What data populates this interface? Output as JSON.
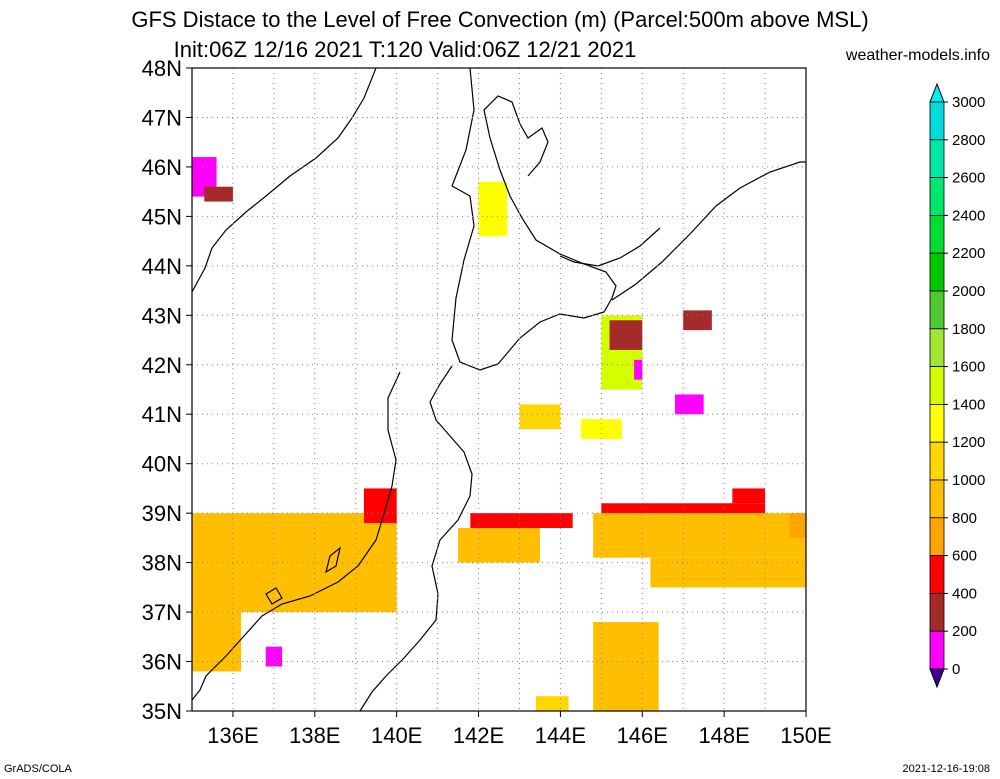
{
  "header": {
    "title_line1": "GFS Distace to the Level of Free Convection (m) (Parcel:500m above MSL)",
    "title_line2": "Init:06Z 12/16 2021 T:120 Valid:06Z 12/21 2021",
    "site": "weather-models.info"
  },
  "footer": {
    "credit": "GrADS/COLA",
    "timestamp": "2021-12-16-19:08"
  },
  "map": {
    "lon_range": [
      135,
      150
    ],
    "lat_range": [
      35,
      48
    ],
    "lat_labels": [
      "35N",
      "36N",
      "37N",
      "38N",
      "39N",
      "40N",
      "41N",
      "42N",
      "43N",
      "44N",
      "45N",
      "46N",
      "47N",
      "48N"
    ],
    "lon_labels": [
      "136E",
      "138E",
      "140E",
      "142E",
      "144E",
      "146E",
      "148E",
      "150E"
    ],
    "grid": "dotted"
  },
  "colorbar": {
    "levels": [
      "0",
      "200",
      "400",
      "600",
      "800",
      "1000",
      "1200",
      "1400",
      "1600",
      "1800",
      "2000",
      "2200",
      "2400",
      "2600",
      "2800",
      "3000"
    ],
    "colors": [
      "#3c0096",
      "#ff00ff",
      "#a52a2a",
      "#ff0000",
      "#ffa500",
      "#ffbf00",
      "#ffd700",
      "#ffff00",
      "#d4ff00",
      "#a0e632",
      "#50c832",
      "#00c800",
      "#00dc32",
      "#00e66e",
      "#00e6aa",
      "#00dcdc",
      "#00f0f0"
    ]
  },
  "chart_data": {
    "type": "heatmap",
    "variable": "Distance to the Level of Free Convection (m)",
    "units": "m",
    "regions": [
      {
        "lon": [
          135.0,
          140.0
        ],
        "lat": [
          37.0,
          39.0
        ],
        "value": 900
      },
      {
        "lon": [
          135.0,
          136.2
        ],
        "lat": [
          35.8,
          37.0
        ],
        "value": 950
      },
      {
        "lon": [
          139.2,
          140.0
        ],
        "lat": [
          38.8,
          39.5
        ],
        "value": 400
      },
      {
        "lon": [
          141.8,
          144.3
        ],
        "lat": [
          38.7,
          39.0
        ],
        "value": 500
      },
      {
        "lon": [
          141.5,
          143.5
        ],
        "lat": [
          38.0,
          38.7
        ],
        "value": 950
      },
      {
        "lon": [
          144.8,
          150.0
        ],
        "lat": [
          38.1,
          39.0
        ],
        "value": 950
      },
      {
        "lon": [
          145.0,
          149.0
        ],
        "lat": [
          39.0,
          39.2
        ],
        "value": 550
      },
      {
        "lon": [
          148.2,
          149.0
        ],
        "lat": [
          39.2,
          39.5
        ],
        "value": 400
      },
      {
        "lon": [
          149.6,
          150.0
        ],
        "lat": [
          38.5,
          39.0
        ],
        "value": 650
      },
      {
        "lon": [
          146.2,
          150.0
        ],
        "lat": [
          37.5,
          38.1
        ],
        "value": 950
      },
      {
        "lon": [
          145.0,
          146.0
        ],
        "lat": [
          41.5,
          43.0
        ],
        "value": 1400
      },
      {
        "lon": [
          145.2,
          146.0
        ],
        "lat": [
          42.3,
          42.9
        ],
        "value": 350
      },
      {
        "lon": [
          145.8,
          146.0
        ],
        "lat": [
          41.7,
          42.1
        ],
        "value": 100
      },
      {
        "lon": [
          146.8,
          147.5
        ],
        "lat": [
          41.0,
          41.4
        ],
        "value": 100
      },
      {
        "lon": [
          147.0,
          147.7
        ],
        "lat": [
          42.7,
          43.1
        ],
        "value": 200
      },
      {
        "lon": [
          144.5,
          145.5
        ],
        "lat": [
          40.5,
          40.9
        ],
        "value": 1200
      },
      {
        "lon": [
          143.0,
          144.0
        ],
        "lat": [
          40.7,
          41.2
        ],
        "value": 1150
      },
      {
        "lon": [
          142.0,
          142.7
        ],
        "lat": [
          44.6,
          45.7
        ],
        "value": 1200
      },
      {
        "lon": [
          144.8,
          146.4
        ],
        "lat": [
          35.0,
          36.8
        ],
        "value": 950
      },
      {
        "lon": [
          143.4,
          144.2
        ],
        "lat": [
          35.0,
          35.3
        ],
        "value": 1150
      },
      {
        "lon": [
          135.0,
          135.6
        ],
        "lat": [
          45.4,
          46.2
        ],
        "value": 150
      },
      {
        "lon": [
          135.3,
          136.0
        ],
        "lat": [
          45.3,
          45.6
        ],
        "value": 350
      },
      {
        "lon": [
          136.8,
          137.2
        ],
        "lat": [
          35.9,
          36.3
        ],
        "value": 100
      }
    ]
  }
}
